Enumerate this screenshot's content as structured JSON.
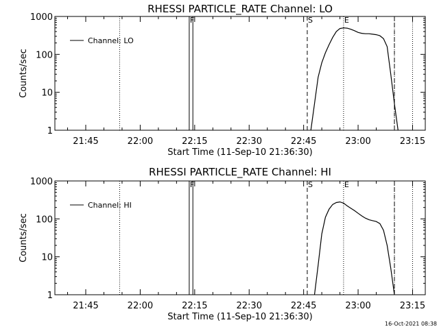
{
  "chart_data": [
    {
      "type": "line",
      "title": "RHESSI PARTICLE_RATE Channel: LO",
      "xlabel": "Start Time (11-Sep-10 21:36:30)",
      "ylabel": "Counts/sec",
      "yscale": "log",
      "ylim": [
        1,
        1000
      ],
      "xlim": [
        "21:36:30",
        "23:18:30"
      ],
      "x_ticks": [
        "21:45",
        "22:00",
        "22:15",
        "22:30",
        "22:45",
        "23:00",
        "23:15"
      ],
      "y_ticks": [
        "1",
        "10",
        "100",
        "1000"
      ],
      "legend_position": "top-left",
      "grid": false,
      "series": [
        {
          "name": "Channel: LO",
          "points": [
            [
              "22:47:00",
              1
            ],
            [
              "22:48:00",
              5
            ],
            [
              "22:49:00",
              25
            ],
            [
              "22:50:00",
              60
            ],
            [
              "22:51:00",
              110
            ],
            [
              "22:52:00",
              180
            ],
            [
              "22:53:00",
              280
            ],
            [
              "22:54:00",
              400
            ],
            [
              "22:55:00",
              480
            ],
            [
              "22:56:00",
              500
            ],
            [
              "22:57:00",
              490
            ],
            [
              "22:58:00",
              460
            ],
            [
              "22:59:00",
              420
            ],
            [
              "23:00:00",
              380
            ],
            [
              "23:01:00",
              360
            ],
            [
              "23:02:00",
              350
            ],
            [
              "23:03:00",
              350
            ],
            [
              "23:04:00",
              340
            ],
            [
              "23:05:00",
              330
            ],
            [
              "23:06:00",
              310
            ],
            [
              "23:07:00",
              260
            ],
            [
              "23:08:00",
              160
            ],
            [
              "23:09:00",
              30
            ],
            [
              "23:10:00",
              5
            ],
            [
              "23:11:00",
              1
            ]
          ]
        }
      ],
      "markers": [
        {
          "label": "F",
          "time": "22:13:30"
        },
        {
          "label": "S",
          "time": "22:46:00"
        },
        {
          "label": "E",
          "time": "22:56:00"
        }
      ]
    },
    {
      "type": "line",
      "title": "RHESSI PARTICLE_RATE Channel: HI",
      "xlabel": "Start Time (11-Sep-10 21:36:30)",
      "ylabel": "Counts/sec",
      "yscale": "log",
      "ylim": [
        1,
        1000
      ],
      "xlim": [
        "21:36:30",
        "23:18:30"
      ],
      "x_ticks": [
        "21:45",
        "22:00",
        "22:15",
        "22:30",
        "22:45",
        "23:00",
        "23:15"
      ],
      "y_ticks": [
        "1",
        "10",
        "100",
        "1000"
      ],
      "legend_position": "top-left",
      "grid": false,
      "series": [
        {
          "name": "Channel: HI",
          "points": [
            [
              "22:48:00",
              1
            ],
            [
              "22:49:00",
              6
            ],
            [
              "22:50:00",
              40
            ],
            [
              "22:51:00",
              110
            ],
            [
              "22:52:00",
              180
            ],
            [
              "22:53:00",
              240
            ],
            [
              "22:54:00",
              270
            ],
            [
              "22:55:00",
              280
            ],
            [
              "22:56:00",
              260
            ],
            [
              "22:57:00",
              220
            ],
            [
              "22:58:00",
              190
            ],
            [
              "22:59:00",
              165
            ],
            [
              "23:00:00",
              140
            ],
            [
              "23:01:00",
              120
            ],
            [
              "23:02:00",
              105
            ],
            [
              "23:03:00",
              95
            ],
            [
              "23:04:00",
              90
            ],
            [
              "23:05:00",
              85
            ],
            [
              "23:06:00",
              75
            ],
            [
              "23:07:00",
              50
            ],
            [
              "23:08:00",
              20
            ],
            [
              "23:09:00",
              5
            ],
            [
              "23:10:00",
              1
            ]
          ]
        }
      ],
      "markers": [
        {
          "label": "F",
          "time": "22:13:30"
        },
        {
          "label": "S",
          "time": "22:46:00"
        },
        {
          "label": "E",
          "time": "22:56:00"
        }
      ]
    }
  ],
  "footer": {
    "timestamp": "16-Oct-2021 08:38"
  }
}
